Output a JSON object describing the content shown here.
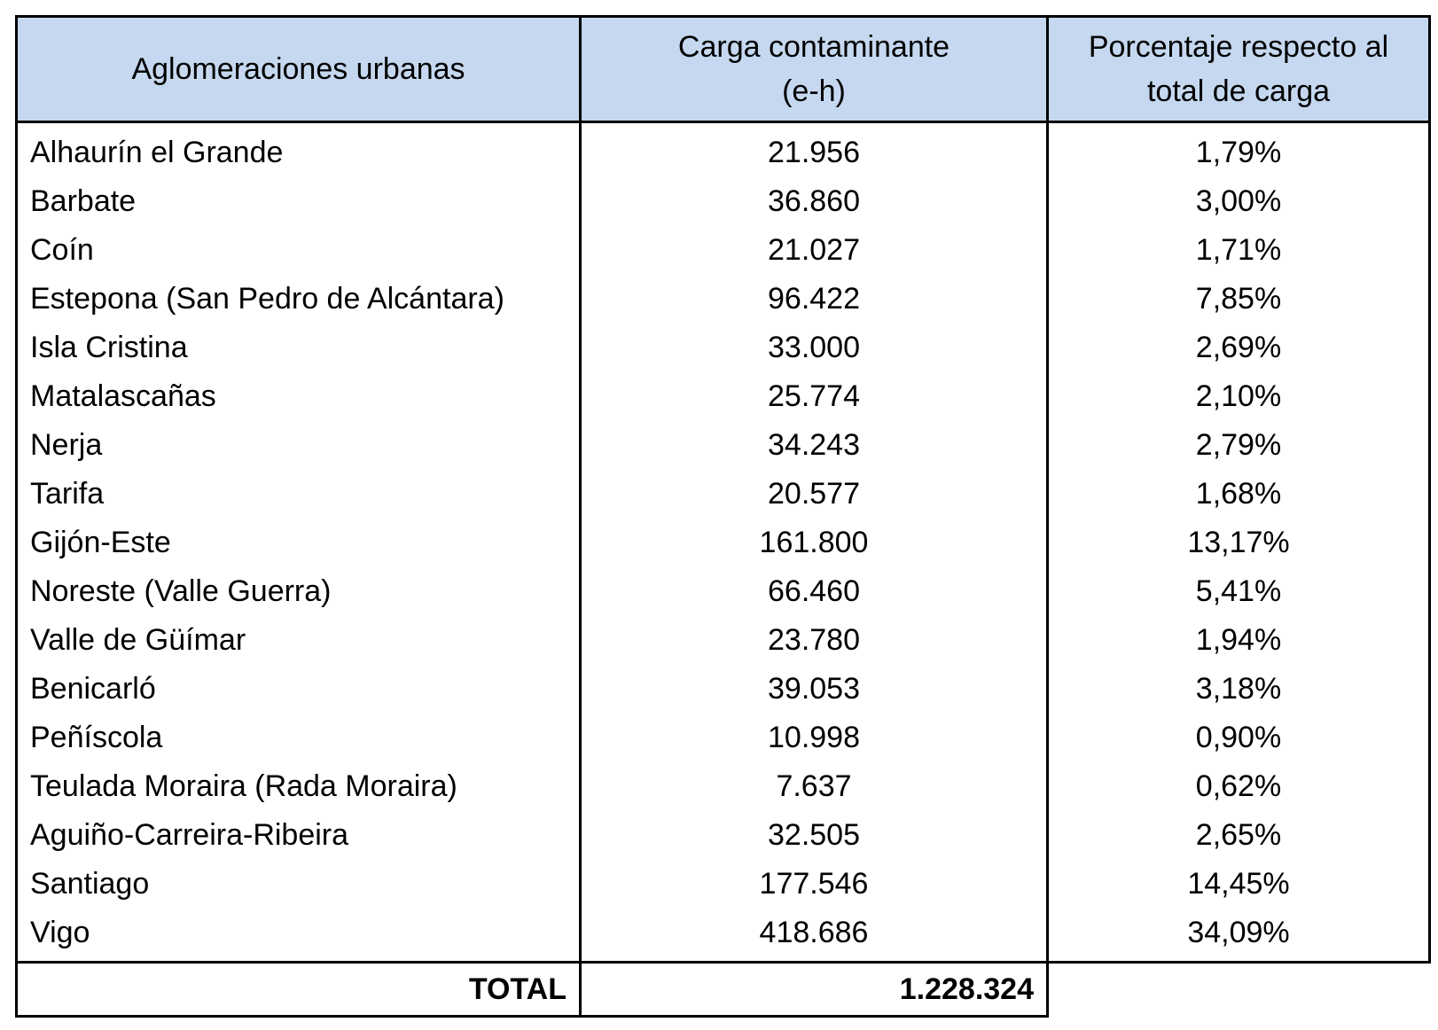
{
  "headers": {
    "col1": "Aglomeraciones urbanas",
    "col2_line1": "Carga contaminante",
    "col2_line2": "(e-h)",
    "col3_line1": "Porcentaje respecto al",
    "col3_line2": "total de carga"
  },
  "rows": [
    {
      "name": "Alhaurín el Grande",
      "load": "21.956",
      "pct": "1,79%"
    },
    {
      "name": "Barbate",
      "load": "36.860",
      "pct": "3,00%"
    },
    {
      "name": "Coín",
      "load": "21.027",
      "pct": "1,71%"
    },
    {
      "name": "Estepona (San Pedro de Alcántara)",
      "load": "96.422",
      "pct": "7,85%"
    },
    {
      "name": "Isla Cristina",
      "load": "33.000",
      "pct": "2,69%"
    },
    {
      "name": "Matalascañas",
      "load": "25.774",
      "pct": "2,10%"
    },
    {
      "name": "Nerja",
      "load": "34.243",
      "pct": "2,79%"
    },
    {
      "name": "Tarifa",
      "load": "20.577",
      "pct": "1,68%"
    },
    {
      "name": "Gijón-Este",
      "load": "161.800",
      "pct": "13,17%"
    },
    {
      "name": "Noreste (Valle Guerra)",
      "load": "66.460",
      "pct": "5,41%"
    },
    {
      "name": "Valle de Güímar",
      "load": "23.780",
      "pct": "1,94%"
    },
    {
      "name": "Benicarló",
      "load": "39.053",
      "pct": "3,18%"
    },
    {
      "name": "Peñíscola",
      "load": "10.998",
      "pct": "0,90%"
    },
    {
      "name": "Teulada Moraira (Rada Moraira)",
      "load": "7.637",
      "pct": "0,62%"
    },
    {
      "name": "Aguiño-Carreira-Ribeira",
      "load": "32.505",
      "pct": "2,65%"
    },
    {
      "name": "Santiago",
      "load": "177.546",
      "pct": "14,45%"
    },
    {
      "name": "Vigo",
      "load": "418.686",
      "pct": "34,09%"
    }
  ],
  "total": {
    "label": "TOTAL",
    "value": "1.228.324"
  }
}
